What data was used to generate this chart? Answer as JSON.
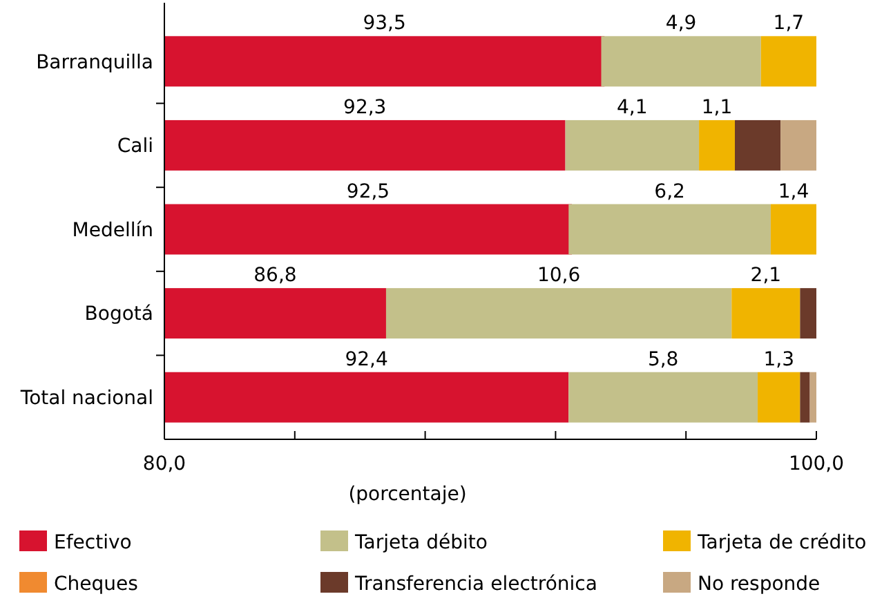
{
  "chart_data": {
    "type": "bar",
    "orientation": "horizontal",
    "xlabel": "(porcentaje)",
    "categories": [
      "Barranquilla",
      "Cali",
      "Medellín",
      "Bogotá",
      "Total nacional"
    ],
    "xlim": [
      80,
      100
    ],
    "xticks": [
      {
        "value": 80,
        "label": "80,0"
      },
      {
        "value": 84,
        "label": null
      },
      {
        "value": 88,
        "label": null
      },
      {
        "value": 92,
        "label": null
      },
      {
        "value": 96,
        "label": null
      },
      {
        "value": 100,
        "label": "100,0"
      }
    ],
    "legend": "bottom",
    "series": [
      {
        "name": "Efectivo",
        "color": "#d7132f",
        "values": [
          93.5,
          92.3,
          92.5,
          86.8,
          92.4
        ],
        "base": [
          0,
          0,
          0,
          0,
          0
        ],
        "value_labels": [
          "93,5",
          "92,3",
          "92,5",
          "86,8",
          "92,4"
        ]
      },
      {
        "name": "Tarjeta débito",
        "color": "#c3c08a",
        "values": [
          4.9,
          4.1,
          6.2,
          10.6,
          5.8
        ],
        "base": [
          93.4,
          92.3,
          92.4,
          86.8,
          92.4
        ],
        "value_labels": [
          "4,9",
          "4,1",
          "6,2",
          "10,6",
          "5,8"
        ]
      },
      {
        "name": "Tarjeta de crédito",
        "color": "#f0b400",
        "values": [
          1.7,
          1.1,
          1.4,
          2.1,
          1.3
        ],
        "base": [
          98.3,
          96.4,
          98.6,
          97.4,
          98.2
        ],
        "value_labels": [
          "1,7",
          "1,1",
          "1,4",
          "2,1",
          "1,3"
        ]
      },
      {
        "name": "Cheques",
        "color": "#f08a30",
        "values": [
          null,
          null,
          null,
          null,
          null
        ],
        "base": [
          null,
          null,
          null,
          null,
          null
        ]
      },
      {
        "name": "Transferencia electrónica",
        "color": "#6b3a2a",
        "values": [
          null,
          1.4,
          null,
          0.5,
          0.3
        ],
        "base": [
          null,
          97.5,
          null,
          99.5,
          99.5
        ]
      },
      {
        "name": "No responde",
        "color": "#c8a882",
        "values": [
          null,
          1.1,
          null,
          null,
          0.2
        ],
        "base": [
          null,
          98.9,
          null,
          null,
          99.8
        ]
      }
    ]
  }
}
